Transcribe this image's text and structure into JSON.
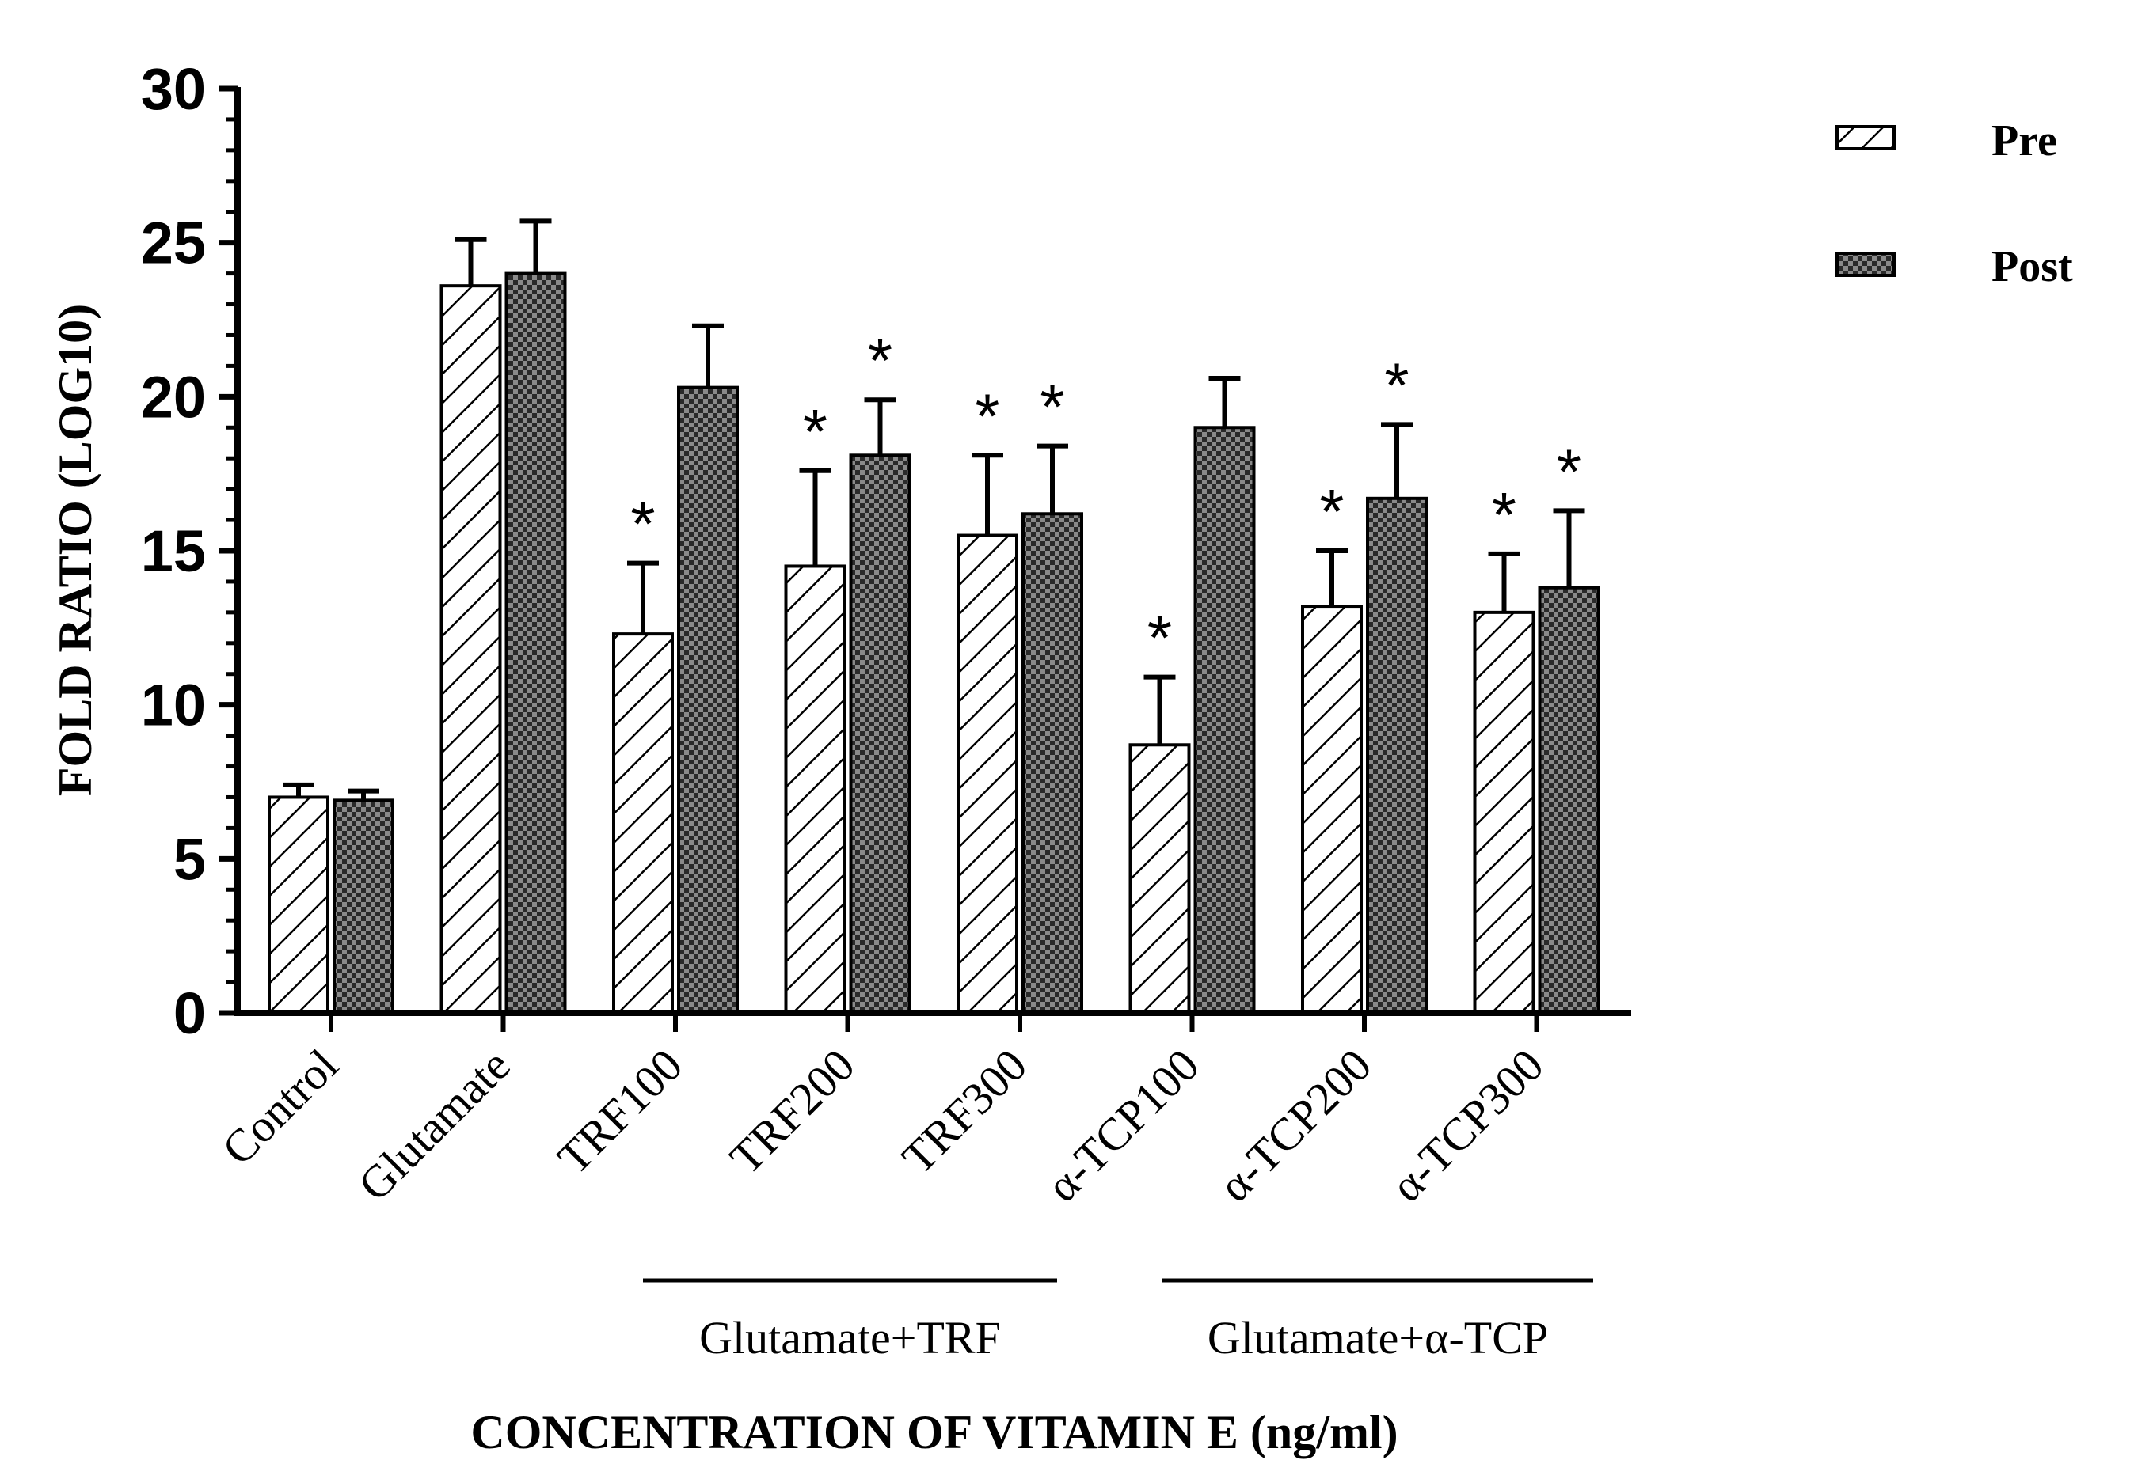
{
  "chart_data": {
    "type": "bar",
    "title": "",
    "ylabel": "FOLD RATIO (LOG10)",
    "xlabel": "CONCENTRATION OF VITAMIN E (ng/ml)",
    "ylim": [
      0,
      30
    ],
    "yticks": [
      0,
      5,
      10,
      15,
      20,
      25,
      30
    ],
    "categories": [
      "Control",
      "Glutamate",
      "TRF100",
      "TRF200",
      "TRF300",
      "α-TCP100",
      "α-TCP200",
      "α-TCP300"
    ],
    "series": [
      {
        "name": "Pre",
        "pattern": "hatch",
        "values": [
          7.0,
          23.6,
          12.3,
          14.5,
          15.5,
          8.7,
          13.2,
          13.0
        ],
        "errors": [
          0.4,
          1.5,
          2.3,
          3.1,
          2.6,
          2.2,
          1.8,
          1.9
        ],
        "significant": [
          false,
          false,
          true,
          true,
          true,
          true,
          true,
          true
        ]
      },
      {
        "name": "Post",
        "pattern": "checker",
        "values": [
          6.9,
          24.0,
          20.3,
          18.1,
          16.2,
          19.0,
          16.7,
          13.8
        ],
        "errors": [
          0.3,
          1.7,
          2.0,
          1.8,
          2.2,
          1.6,
          2.4,
          2.5
        ],
        "significant": [
          false,
          false,
          false,
          true,
          true,
          false,
          true,
          true
        ]
      }
    ],
    "significance_marker": "*",
    "groups": [
      {
        "label": "Glutamate+TRF",
        "from": 2,
        "to": 4
      },
      {
        "label": "Glutamate+α-TCP",
        "from": 5,
        "to": 7
      }
    ],
    "legend_position": "top-right",
    "grid": false
  }
}
